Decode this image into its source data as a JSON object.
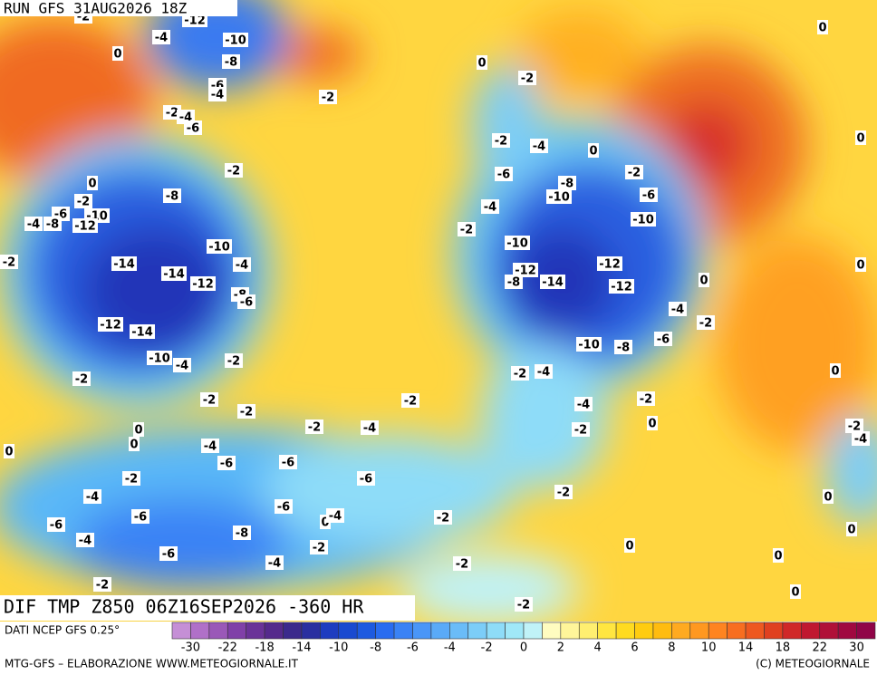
{
  "header": {
    "run": "RUN GFS 31AUG2026 18Z"
  },
  "map": {
    "caption": "DIF TMP Z850 06Z16SEP2026 -360 HR",
    "contour_labels": [
      -2,
      -12,
      -4,
      -10,
      0,
      -8,
      -6,
      -4,
      -2,
      0,
      -2,
      -2,
      -4,
      -6,
      -2,
      0,
      -8,
      -2,
      -6,
      -10,
      -4,
      -8,
      -12,
      -10,
      -2,
      -14,
      -4,
      -14,
      -12,
      -8,
      -6,
      -12,
      -14,
      -10,
      -4,
      -2,
      -2,
      -2,
      -2,
      -2,
      -4,
      0,
      -6,
      -8,
      -2,
      -10,
      -6,
      -4,
      -10,
      -2,
      -10,
      -12,
      -8,
      -14,
      -12,
      -12,
      0,
      -4,
      -2,
      -6,
      -10,
      -8,
      -2,
      -4,
      -2,
      -4,
      0,
      -2,
      -2,
      -2,
      -4,
      0,
      0,
      0,
      -4,
      -6,
      -6,
      -6,
      -2,
      -4,
      -2,
      -6,
      0,
      -4,
      -6,
      -6,
      -8,
      -2,
      -4,
      -2,
      -6,
      -4,
      -2,
      0,
      -2,
      -2,
      0,
      -2,
      -4,
      0,
      0,
      0,
      0,
      0,
      0,
      0
    ]
  },
  "legend": {
    "source": "DATI NCEP GFS 0.25°",
    "colors": [
      "#c58fd6",
      "#b070c8",
      "#9a58b8",
      "#8040a8",
      "#6a3398",
      "#552a8c",
      "#3b2a8c",
      "#2a2fa0",
      "#1e3cc0",
      "#1a4ad0",
      "#1e5ae0",
      "#2a6cf0",
      "#3a82f5",
      "#4a96f8",
      "#5aaaf8",
      "#6abcf8",
      "#7ccdf8",
      "#8edcf8",
      "#a0e8f8",
      "#c0f2f8",
      "#fffcc0",
      "#fff59a",
      "#ffef70",
      "#ffe640",
      "#ffdb20",
      "#ffcc10",
      "#ffbc10",
      "#ffaa20",
      "#ff9820",
      "#ff8420",
      "#f86e20",
      "#ee5820",
      "#e04020",
      "#d02828",
      "#c01830",
      "#b01038",
      "#a00840",
      "#900548"
    ],
    "ticks": [
      -30,
      -22,
      -18,
      -14,
      -10,
      -8,
      -6,
      -4,
      -2,
      0,
      2,
      4,
      6,
      8,
      10,
      14,
      18,
      22,
      30
    ]
  },
  "footer": {
    "credit": "MTG-GFS – ELABORAZIONE WWW.METEOGIORNALE.IT",
    "copyright": "(C) METEOGIORNALE"
  }
}
